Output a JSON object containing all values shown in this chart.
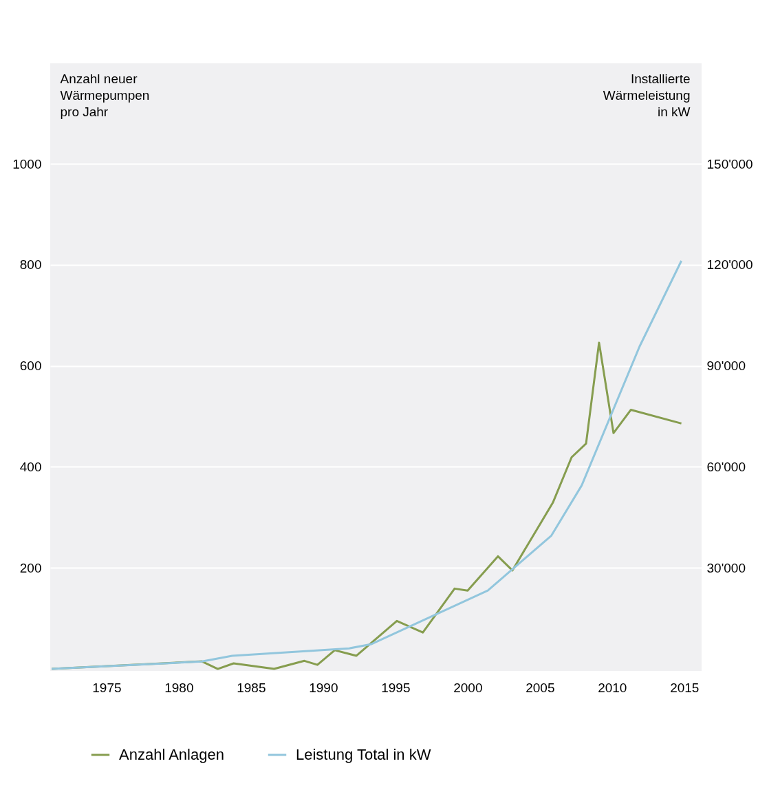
{
  "chart_data": {
    "type": "line",
    "ylabel": "Anzahl neuer\nWärmepumpen\npro Jahr",
    "y2label": "Installierte\nWärmeleistung\nin kW",
    "xlim": [
      1971.1,
      2016.2
    ],
    "xticks": [
      1975,
      1980,
      1985,
      1990,
      1995,
      2000,
      2005,
      2010,
      2015
    ],
    "ylim": [
      -4,
      1199
    ],
    "yticks": [
      200,
      400,
      600,
      800,
      1000
    ],
    "y2lim": [
      -600,
      179850
    ],
    "y2ticks": [
      {
        "value": 30000,
        "label": "30'000"
      },
      {
        "value": 60000,
        "label": "60'000"
      },
      {
        "value": 90000,
        "label": "90'000"
      },
      {
        "value": 120000,
        "label": "120'000"
      },
      {
        "value": 150000,
        "label": "150'000"
      }
    ],
    "grid": "y",
    "legend": "bottom",
    "line_style": "solid",
    "series": [
      {
        "name": "Anzahl Anlagen",
        "color": "#869d4f",
        "x": [
          1971.2,
          1981.6,
          1982.7,
          1983.8,
          1986.6,
          1988.7,
          1989.6,
          1990.8,
          1992.3,
          1995.1,
          1996.9,
          1999.1,
          2000.0,
          2002.1,
          2003.1,
          2005.9,
          2007.2,
          2008.2,
          2009.1,
          2010.1,
          2011.3,
          2014.8
        ],
        "values": [
          0,
          15,
          0,
          11,
          0,
          16,
          8,
          37,
          26,
          95,
          72,
          159,
          155,
          223,
          195,
          329,
          419,
          446,
          646,
          467,
          513,
          486
        ]
      },
      {
        "name": "Leistung Total in kW",
        "color": "#92c6dd",
        "axis": "y2",
        "x": [
          1971.2,
          1981.6,
          1983.7,
          1991.8,
          1993.3,
          2001.4,
          2005.8,
          2007.9,
          2011.9,
          2014.8
        ],
        "values": [
          0,
          2200,
          3900,
          6100,
          7300,
          23300,
          39600,
          54500,
          95700,
          121200
        ]
      }
    ]
  }
}
